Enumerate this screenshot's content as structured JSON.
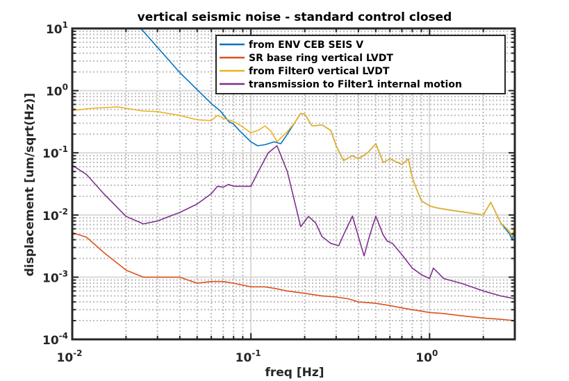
{
  "chart_data": {
    "type": "line",
    "title": "vertical seismic noise - standard control closed",
    "xlabel": "freq [Hz]",
    "ylabel": "displacement [um/sqrt(Hz)]",
    "xscale": "log",
    "yscale": "log",
    "xlim": [
      0.01,
      3
    ],
    "ylim": [
      0.0001,
      10
    ],
    "grid": true,
    "legend_position": "top-right",
    "x_ticks": [
      {
        "value": 0.01,
        "base": "10",
        "exp": "-2"
      },
      {
        "value": 0.1,
        "base": "10",
        "exp": "-1"
      },
      {
        "value": 1,
        "base": "10",
        "exp": "0"
      }
    ],
    "y_ticks": [
      {
        "value": 10,
        "base": "10",
        "exp": "1"
      },
      {
        "value": 1,
        "base": "10",
        "exp": "0"
      },
      {
        "value": 0.1,
        "base": "10",
        "exp": "-1"
      },
      {
        "value": 0.01,
        "base": "10",
        "exp": "-2"
      },
      {
        "value": 0.001,
        "base": "10",
        "exp": "-3"
      },
      {
        "value": 0.0001,
        "base": "10",
        "exp": "-4"
      }
    ],
    "series": [
      {
        "name": "from ENV CEB SEIS V",
        "color": "#0072BD",
        "x": [
          0.0242,
          0.04,
          0.06,
          0.0675,
          0.075,
          0.08,
          0.086,
          0.1,
          0.109,
          0.12,
          0.135,
          0.147,
          0.16,
          0.175,
          0.19,
          0.2,
          0.22,
          0.25,
          0.28,
          0.3,
          0.33,
          0.37,
          0.4,
          0.45,
          0.5,
          0.55,
          0.6,
          0.7,
          0.76,
          0.8,
          0.85,
          0.9,
          1.0,
          1.1,
          1.3,
          1.6,
          2.0,
          2.2,
          2.5,
          2.8,
          2.9,
          3.0
        ],
        "y": [
          10,
          1.95,
          0.62,
          0.47,
          0.32,
          0.29,
          0.23,
          0.15,
          0.13,
          0.135,
          0.15,
          0.14,
          0.2,
          0.3,
          0.43,
          0.42,
          0.27,
          0.28,
          0.23,
          0.13,
          0.075,
          0.09,
          0.08,
          0.1,
          0.14,
          0.07,
          0.08,
          0.065,
          0.08,
          0.04,
          0.025,
          0.017,
          0.014,
          0.013,
          0.012,
          0.011,
          0.01,
          0.016,
          0.0075,
          0.005,
          0.004,
          0.006
        ]
      },
      {
        "name": "SR base ring vertical LVDT",
        "color": "#D95319",
        "x": [
          0.01,
          0.012,
          0.015,
          0.02,
          0.025,
          0.03,
          0.04,
          0.05,
          0.06,
          0.07,
          0.08,
          0.1,
          0.12,
          0.14,
          0.16,
          0.2,
          0.25,
          0.3,
          0.35,
          0.4,
          0.5,
          0.6,
          0.7,
          0.8,
          1.0,
          1.2,
          1.5,
          2.0,
          2.5,
          3.0
        ],
        "y": [
          0.0052,
          0.0044,
          0.0025,
          0.0013,
          0.001,
          0.001,
          0.001,
          0.0008,
          0.00085,
          0.00085,
          0.0008,
          0.0007,
          0.0007,
          0.00065,
          0.0006,
          0.00055,
          0.0005,
          0.00048,
          0.00045,
          0.0004,
          0.00038,
          0.00035,
          0.00032,
          0.0003,
          0.00027,
          0.00026,
          0.00024,
          0.00022,
          0.00021,
          0.0002
        ]
      },
      {
        "name": "from Filter0 vertical LVDT",
        "color": "#EDB120",
        "x": [
          0.01,
          0.013,
          0.018,
          0.02,
          0.025,
          0.03,
          0.04,
          0.05,
          0.06,
          0.065,
          0.07,
          0.08,
          0.09,
          0.1,
          0.11,
          0.12,
          0.13,
          0.14,
          0.16,
          0.175,
          0.19,
          0.2,
          0.22,
          0.25,
          0.28,
          0.3,
          0.33,
          0.37,
          0.4,
          0.45,
          0.5,
          0.55,
          0.6,
          0.7,
          0.76,
          0.8,
          0.85,
          0.9,
          1.0,
          1.1,
          1.3,
          1.6,
          2.0,
          2.2,
          2.5,
          2.8,
          2.9,
          3.0
        ],
        "y": [
          0.48,
          0.52,
          0.55,
          0.52,
          0.47,
          0.46,
          0.4,
          0.34,
          0.33,
          0.4,
          0.36,
          0.32,
          0.26,
          0.21,
          0.23,
          0.27,
          0.22,
          0.15,
          0.22,
          0.3,
          0.43,
          0.42,
          0.27,
          0.28,
          0.23,
          0.13,
          0.075,
          0.09,
          0.08,
          0.1,
          0.14,
          0.07,
          0.08,
          0.065,
          0.08,
          0.04,
          0.025,
          0.017,
          0.014,
          0.013,
          0.012,
          0.011,
          0.01,
          0.016,
          0.0075,
          0.0055,
          0.0045,
          0.007
        ]
      },
      {
        "name": "transmission to Filter1 internal motion",
        "color": "#7E2F8E",
        "x": [
          0.01,
          0.012,
          0.015,
          0.02,
          0.025,
          0.03,
          0.035,
          0.04,
          0.05,
          0.06,
          0.065,
          0.07,
          0.075,
          0.08,
          0.09,
          0.1,
          0.11,
          0.125,
          0.14,
          0.16,
          0.19,
          0.21,
          0.23,
          0.25,
          0.28,
          0.31,
          0.33,
          0.37,
          0.41,
          0.43,
          0.46,
          0.5,
          0.55,
          0.58,
          0.62,
          0.7,
          0.8,
          0.9,
          1.0,
          1.05,
          1.2,
          1.5,
          2.0,
          2.5,
          3.0
        ],
        "y": [
          0.063,
          0.045,
          0.022,
          0.0095,
          0.0072,
          0.008,
          0.0095,
          0.011,
          0.015,
          0.022,
          0.029,
          0.028,
          0.031,
          0.029,
          0.029,
          0.029,
          0.05,
          0.1,
          0.13,
          0.05,
          0.0065,
          0.0095,
          0.0075,
          0.0045,
          0.0035,
          0.0032,
          0.0048,
          0.0096,
          0.0035,
          0.0022,
          0.0045,
          0.0096,
          0.0048,
          0.0038,
          0.0035,
          0.0023,
          0.0014,
          0.0011,
          0.00095,
          0.0014,
          0.00095,
          0.0008,
          0.0006,
          0.0005,
          0.00045
        ]
      }
    ]
  }
}
